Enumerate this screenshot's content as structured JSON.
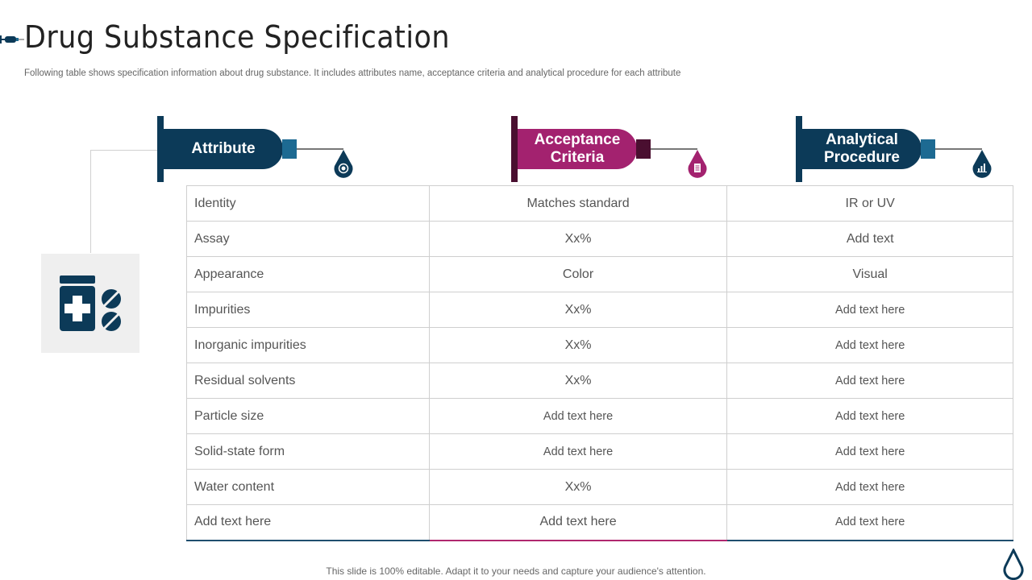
{
  "title": "Drug Substance Specification",
  "subtitle": "Following table shows specification information about drug substance. It includes attributes name, acceptance criteria and analytical procedure for each attribute",
  "colors": {
    "navy": "#0c3a58",
    "navy_hub": "#1d6a92",
    "magenta": "#a3226f",
    "magenta_dark": "#4a0f30"
  },
  "headers": [
    {
      "label": "Attribute",
      "icon": "target-icon",
      "theme": "navy"
    },
    {
      "label": "Acceptance Criteria",
      "icon": "document-icon",
      "theme": "magenta"
    },
    {
      "label": "Analytical Procedure",
      "icon": "bar-chart-icon",
      "theme": "navy"
    }
  ],
  "rows": [
    {
      "attribute": "Identity",
      "criteria": "Matches standard",
      "procedure": "IR or UV"
    },
    {
      "attribute": "Assay",
      "criteria": "Xx%",
      "procedure": "Add text"
    },
    {
      "attribute": "Appearance",
      "criteria": "Color",
      "procedure": "Visual"
    },
    {
      "attribute": "Impurities",
      "criteria": "Xx%",
      "procedure": "Add text here"
    },
    {
      "attribute": "Inorganic impurities",
      "criteria": "Xx%",
      "procedure": "Add text here"
    },
    {
      "attribute": "Residual solvents",
      "criteria": "Xx%",
      "procedure": "Add text here"
    },
    {
      "attribute": "Particle size",
      "criteria": "Add text here",
      "procedure": "Add text here"
    },
    {
      "attribute": "Solid-state form",
      "criteria": "Add text here",
      "procedure": "Add text here"
    },
    {
      "attribute": "Water content",
      "criteria": "Xx%",
      "procedure": "Add text here"
    },
    {
      "attribute": "Add text here",
      "criteria": "Add text here",
      "procedure": "Add text here"
    }
  ],
  "side_icon": "medicine-bottle-icon",
  "footer": "This slide is 100% editable. Adapt it to your needs and capture your audience's attention."
}
